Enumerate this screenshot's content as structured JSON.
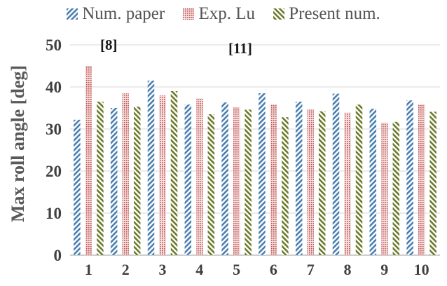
{
  "chart_data": {
    "type": "bar",
    "categories": [
      "1",
      "2",
      "3",
      "4",
      "5",
      "6",
      "7",
      "8",
      "9",
      "10"
    ],
    "series": [
      {
        "name": "Num. paper",
        "color": "#4a7fb0",
        "pattern": "diagonal-stripes",
        "values": [
          32.2,
          35.0,
          41.5,
          35.8,
          36.3,
          38.5,
          36.5,
          38.4,
          34.8,
          36.8
        ]
      },
      {
        "name": "Exp. Lu",
        "color": "#c0504d",
        "pattern": "dots",
        "values": [
          45.0,
          38.5,
          38.0,
          37.3,
          35.1,
          35.9,
          34.6,
          33.9,
          31.5,
          35.9
        ]
      },
      {
        "name": "Present num.",
        "color": "#6b7a2a",
        "pattern": "reverse-diagonal-stripes",
        "values": [
          36.5,
          35.3,
          39.0,
          33.5,
          34.6,
          32.8,
          34.2,
          35.8,
          31.7,
          34.1
        ]
      }
    ],
    "ylabel": "Max roll angle [deg]",
    "xlabel": "",
    "ylim": [
      0,
      50
    ],
    "yticks": [
      0,
      10,
      20,
      30,
      40,
      50
    ],
    "grid": true,
    "legend": "top",
    "annotations": [
      "[8]",
      "[11]"
    ]
  }
}
